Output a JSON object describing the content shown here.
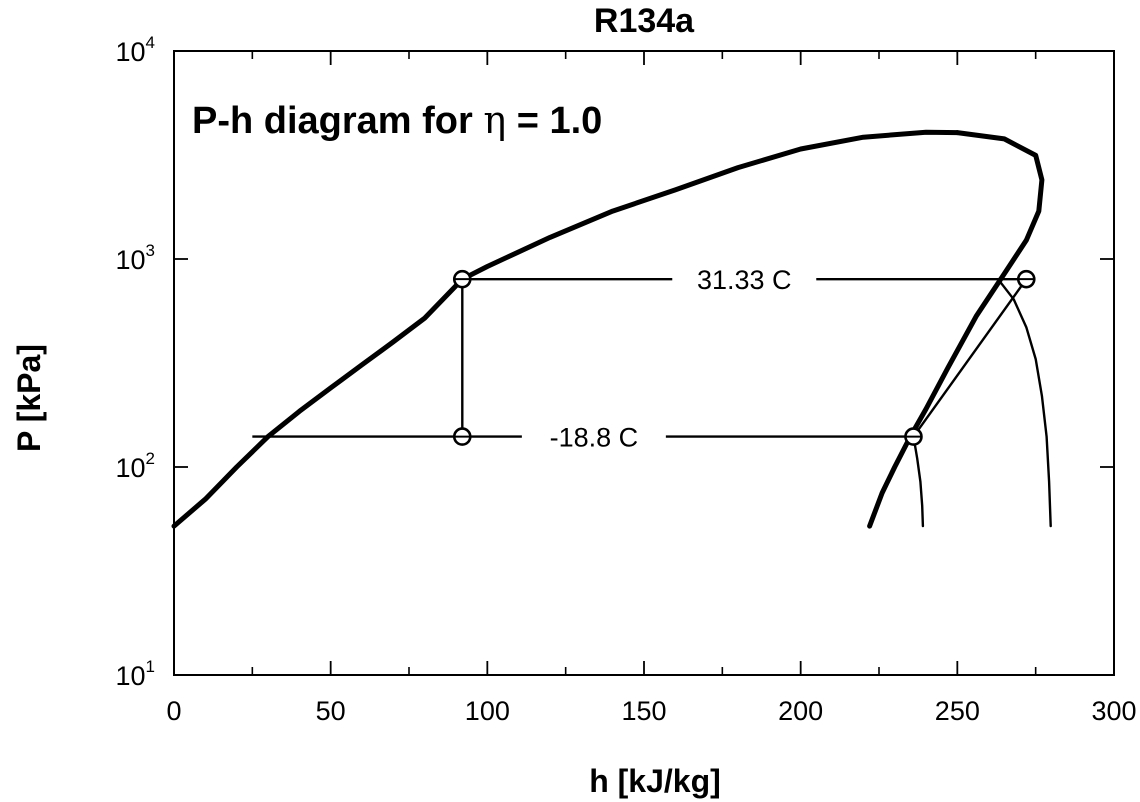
{
  "chart_data": {
    "type": "line",
    "title": "R134a",
    "xlabel": "h [kJ/kg]",
    "ylabel": "P [kPa]",
    "annotation": {
      "prefix": "P-h diagram for ",
      "symbol": "η",
      "suffix": " = 1.0"
    },
    "xlim": [
      0,
      300
    ],
    "ylim": [
      10,
      10000
    ],
    "yscale": "log",
    "xticks": [
      {
        "value": 0,
        "label": "0"
      },
      {
        "value": 50,
        "label": "50"
      },
      {
        "value": 100,
        "label": "100"
      },
      {
        "value": 150,
        "label": "150"
      },
      {
        "value": 200,
        "label": "200"
      },
      {
        "value": 250,
        "label": "250"
      },
      {
        "value": 300,
        "label": "300"
      }
    ],
    "yticks": [
      {
        "value": 10,
        "base": "10",
        "exp": "1"
      },
      {
        "value": 100,
        "base": "10",
        "exp": "2"
      },
      {
        "value": 1000,
        "base": "10",
        "exp": "3"
      },
      {
        "value": 10000,
        "base": "10",
        "exp": "4"
      }
    ],
    "grid": false,
    "series": [
      {
        "role": "saturation-liquid",
        "x": [
          0,
          10,
          20,
          30,
          40,
          50,
          60,
          70,
          80,
          92,
          100,
          120,
          140,
          160,
          180,
          200,
          220,
          240,
          250
        ],
        "y": [
          52,
          70,
          100,
          140,
          185,
          240,
          310,
          400,
          520,
          800,
          920,
          1270,
          1700,
          2150,
          2750,
          3380,
          3850,
          4070,
          4050
        ]
      },
      {
        "role": "saturation-vapor",
        "x": [
          250,
          265,
          275,
          277,
          276,
          272,
          265,
          256,
          247,
          240,
          235,
          230,
          226,
          222
        ],
        "y": [
          4050,
          3780,
          3150,
          2400,
          1700,
          1230,
          850,
          530,
          300,
          190,
          140,
          100,
          75,
          52
        ]
      },
      {
        "role": "isentrope-1",
        "x": [
          236,
          237.2,
          238.2,
          238.8,
          239
        ],
        "y": [
          140,
          110,
          85,
          65,
          52
        ]
      },
      {
        "role": "isentrope-2",
        "x": [
          263,
          268,
          272,
          275,
          277,
          278.5,
          279.3,
          279.8
        ],
        "y": [
          800,
          640,
          470,
          330,
          220,
          140,
          85,
          52
        ]
      },
      {
        "role": "cycle-condenser",
        "x": [
          92,
          272
        ],
        "y": [
          800,
          800
        ],
        "label": "31.33 C",
        "label_x": 182
      },
      {
        "role": "cycle-evaporator",
        "x": [
          25,
          236
        ],
        "y": [
          140,
          140
        ],
        "label": "-18.8 C",
        "label_x": 134
      },
      {
        "role": "cycle-expansion",
        "x": [
          92,
          92
        ],
        "y": [
          800,
          140
        ]
      },
      {
        "role": "cycle-compression",
        "x": [
          236,
          272
        ],
        "y": [
          140,
          800
        ]
      }
    ],
    "points": [
      {
        "x": 92,
        "y": 800
      },
      {
        "x": 92,
        "y": 140
      },
      {
        "x": 236,
        "y": 140
      },
      {
        "x": 272,
        "y": 800
      }
    ]
  }
}
